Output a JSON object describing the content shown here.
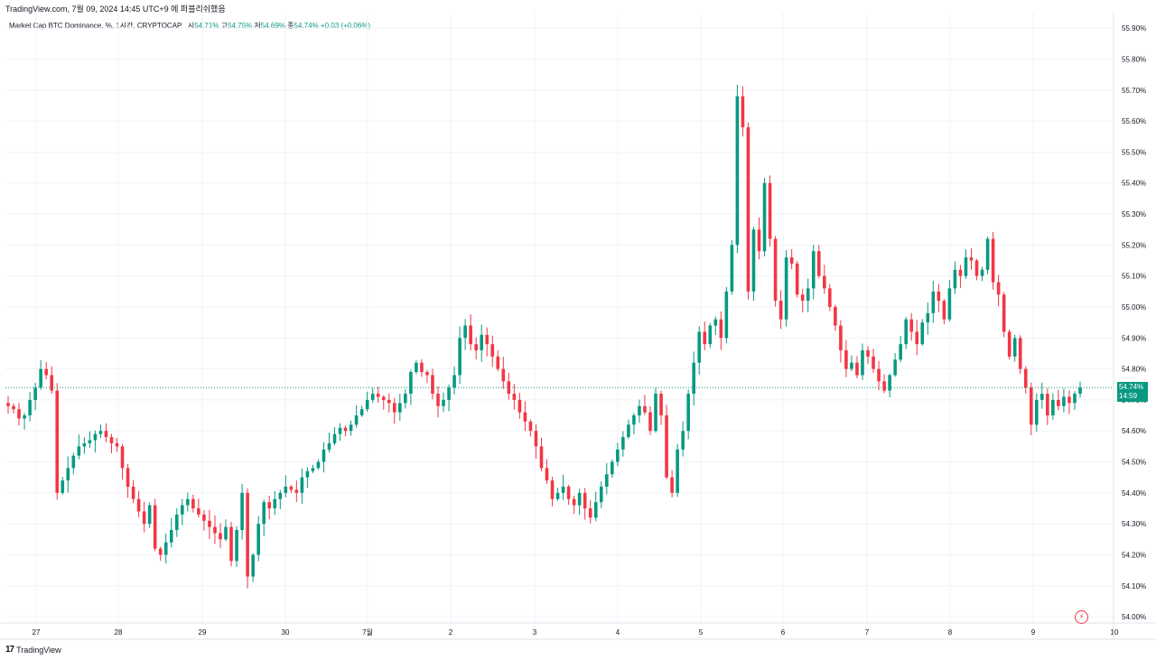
{
  "header": {
    "published_line": "TradingView.com, 7월 09, 2024 14:45 UTC+9 에 퍼블리쉬했음"
  },
  "legend": {
    "symbol": "Market Cap BTC Dominance, %, 1시간, CRYPTOCAP",
    "open_label": "시",
    "open": "54.71%",
    "high_label": "고",
    "high": "54.75%",
    "low_label": "저",
    "low": "54.69%",
    "close_label": "종",
    "close": "54.74%",
    "change": "+0.03 (+0.06%)"
  },
  "price_tag": {
    "value": "54.74%",
    "countdown": "14:59"
  },
  "brand": {
    "logo": "17",
    "name": "TradingView"
  },
  "icons": {
    "bolt": "lightning-icon"
  },
  "colors": {
    "up": "#089981",
    "down": "#f23645",
    "grid": "#f0f3fa",
    "last_price_line": "#089981"
  },
  "chart_data": {
    "type": "candlestick",
    "y_unit": "%",
    "ylim": [
      53.996,
      55.925
    ],
    "y_ticks": [
      "55.90%",
      "55.80%",
      "55.70%",
      "55.60%",
      "55.50%",
      "55.40%",
      "55.30%",
      "55.20%",
      "55.10%",
      "55.00%",
      "54.90%",
      "54.80%",
      "54.70%",
      "54.60%",
      "54.50%",
      "54.40%",
      "54.30%",
      "54.20%",
      "54.10%",
      "54.00%"
    ],
    "x_ticks": [
      "27",
      "28",
      "29",
      "30",
      "7월",
      "2",
      "3",
      "4",
      "5",
      "6",
      "7",
      "8",
      "9",
      "10"
    ],
    "last_price": 54.74,
    "grid": true,
    "hourly_closes": [
      54.68,
      54.67,
      54.64,
      54.65,
      54.7,
      54.74,
      54.8,
      54.78,
      54.73,
      54.4,
      54.44,
      54.48,
      54.52,
      54.55,
      54.56,
      54.57,
      54.59,
      54.6,
      54.58,
      54.56,
      54.55,
      54.48,
      54.42,
      54.38,
      54.34,
      54.3,
      54.36,
      54.22,
      54.2,
      54.24,
      54.28,
      54.33,
      54.36,
      54.38,
      54.35,
      54.33,
      54.31,
      54.29,
      54.27,
      54.25,
      54.29,
      54.18,
      54.28,
      54.4,
      54.13,
      54.2,
      54.3,
      54.37,
      54.35,
      54.38,
      54.4,
      54.42,
      54.41,
      54.4,
      54.45,
      54.47,
      54.48,
      54.5,
      54.54,
      54.56,
      54.59,
      54.61,
      54.6,
      54.62,
      54.65,
      54.67,
      54.7,
      54.72,
      54.71,
      54.7,
      54.69,
      54.66,
      54.69,
      54.72,
      54.79,
      54.82,
      54.79,
      54.78,
      54.72,
      54.68,
      54.7,
      54.74,
      54.78,
      54.9,
      54.94,
      54.88,
      54.86,
      54.91,
      54.88,
      54.84,
      54.8,
      54.76,
      54.72,
      54.7,
      54.66,
      54.63,
      54.6,
      54.55,
      54.48,
      54.44,
      54.38,
      54.4,
      54.42,
      54.38,
      54.36,
      54.4,
      54.35,
      54.32,
      54.37,
      54.42,
      54.46,
      54.5,
      54.54,
      54.58,
      54.62,
      54.65,
      54.68,
      54.66,
      54.6,
      54.72,
      54.65,
      54.45,
      54.4,
      54.54,
      54.6,
      54.72,
      54.82,
      54.92,
      54.88,
      54.94,
      54.96,
      54.9,
      55.05,
      55.2,
      55.68,
      55.58,
      55.05,
      55.25,
      55.18,
      55.4,
      55.22,
      55.02,
      54.96,
      55.16,
      55.14,
      55.04,
      55.02,
      55.06,
      55.18,
      55.1,
      55.06,
      55.0,
      54.94,
      54.86,
      54.8,
      54.82,
      54.78,
      54.86,
      54.84,
      54.8,
      54.76,
      54.73,
      54.78,
      54.83,
      54.88,
      54.96,
      54.92,
      54.88,
      54.95,
      54.98,
      55.05,
      55.02,
      54.96,
      55.06,
      55.12,
      55.1,
      55.16,
      55.15,
      55.1,
      55.12,
      55.22,
      55.08,
      55.04,
      54.92,
      54.84,
      54.9,
      54.8,
      54.74,
      54.62,
      54.7,
      54.72,
      54.65,
      54.7,
      54.68,
      54.71,
      54.69,
      54.72,
      54.74
    ]
  }
}
